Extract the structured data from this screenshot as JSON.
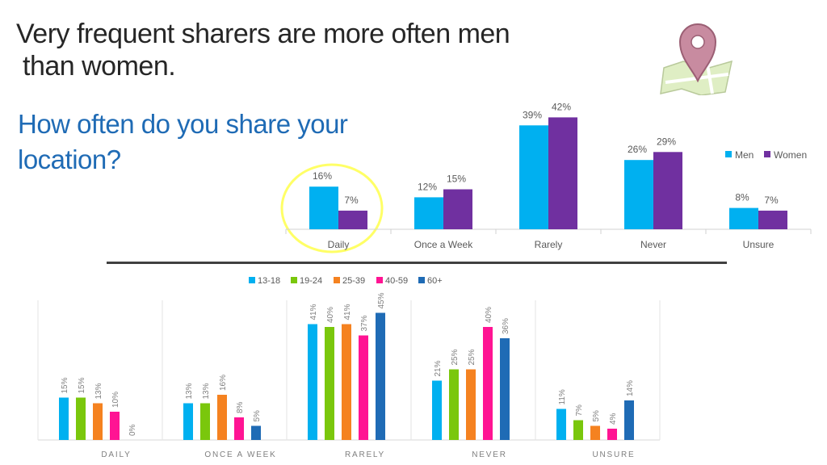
{
  "title": {
    "line1": "Very frequent sharers are more often men",
    "line2": "than women."
  },
  "subtitle": {
    "line1": "How often do you share your",
    "line2": "location?"
  },
  "colors": {
    "men": "#00b0f0",
    "women": "#7030a0",
    "highlight": "#ffff66",
    "age_13_18": "#00b0f0",
    "age_19_24": "#7ac70c",
    "age_25_39": "#f58220",
    "age_40_59": "#ff1493",
    "age_60_plus": "#1f6bb5"
  },
  "chart_data": [
    {
      "type": "bar",
      "categories": [
        "Daily",
        "Once a Week",
        "Rarely",
        "Never",
        "Unsure"
      ],
      "series": [
        {
          "name": "Men",
          "values": [
            16,
            12,
            39,
            26,
            8
          ]
        },
        {
          "name": "Women",
          "values": [
            7,
            15,
            42,
            29,
            7
          ]
        }
      ],
      "value_suffix": "%",
      "legend": "right",
      "highlighted_category": "Daily",
      "ylim": [
        0,
        45
      ]
    },
    {
      "type": "bar",
      "categories": [
        "DAILY",
        "ONCE A WEEK",
        "RARELY",
        "NEVER",
        "UNSURE"
      ],
      "series": [
        {
          "name": "13-18",
          "values": [
            15,
            13,
            41,
            21,
            11
          ]
        },
        {
          "name": "19-24",
          "values": [
            15,
            13,
            40,
            25,
            7
          ]
        },
        {
          "name": "25-39",
          "values": [
            13,
            16,
            41,
            25,
            5
          ]
        },
        {
          "name": "40-59",
          "values": [
            10,
            8,
            37,
            40,
            4
          ]
        },
        {
          "name": "60+",
          "values": [
            0,
            5,
            45,
            36,
            14
          ]
        }
      ],
      "value_suffix": "%",
      "legend": "top",
      "grid": "vertical separators",
      "ylim": [
        0,
        50
      ]
    }
  ]
}
